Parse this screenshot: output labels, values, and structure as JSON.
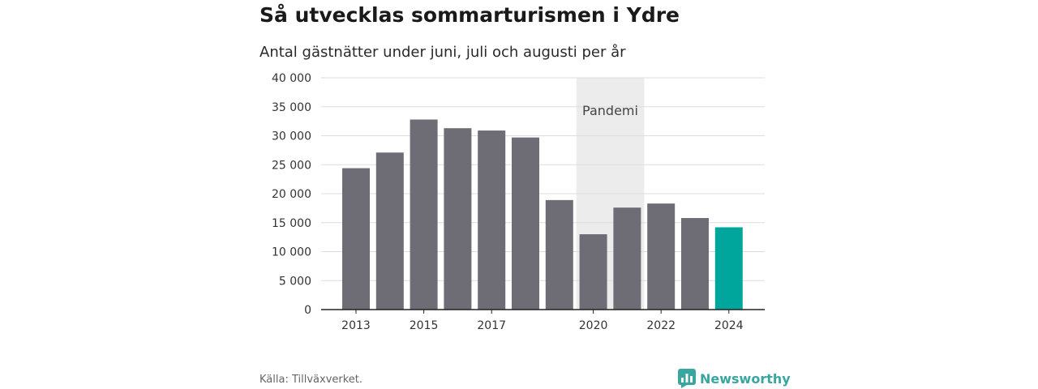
{
  "header": {
    "title": "Så utvecklas sommarturismen i Ydre",
    "subtitle": "Antal gästnätter under juni, juli och augusti per år"
  },
  "footer": {
    "source": "Källa: Tillväxverket.",
    "brand": "Newsworthy",
    "brand_icon": "bar-chart-bubble-icon"
  },
  "colors": {
    "bar": "#6e6d75",
    "highlight": "#00a59b",
    "band": "#ececec",
    "grid": "#dddddd",
    "brand": "#3aa6a0"
  },
  "chart_data": {
    "type": "bar",
    "title": "Så utvecklas sommarturismen i Ydre",
    "subtitle": "Antal gästnätter under juni, juli och augusti per år",
    "categories": [
      "2013",
      "2014",
      "2015",
      "2016",
      "2017",
      "2018",
      "2019",
      "2020",
      "2021",
      "2022",
      "2023",
      "2024"
    ],
    "values": [
      24400,
      27100,
      32800,
      31300,
      30900,
      29700,
      18900,
      13000,
      17600,
      18300,
      15800,
      14200
    ],
    "highlight_index": 11,
    "x_tick_labels": [
      "2013",
      "",
      "2015",
      "",
      "2017",
      "",
      "",
      "2020",
      "",
      "2022",
      "",
      "2024"
    ],
    "y_ticks": [
      0,
      5000,
      10000,
      15000,
      20000,
      25000,
      30000,
      35000,
      40000
    ],
    "y_tick_labels": [
      "0",
      "5 000",
      "10 000",
      "15 000",
      "20 000",
      "25 000",
      "30 000",
      "35 000",
      "40 000"
    ],
    "ylim": [
      0,
      40000
    ],
    "xlabel": "",
    "ylabel": "",
    "grid": true,
    "annotation": {
      "label": "Pandemi",
      "from": "2020",
      "to": "2021"
    }
  }
}
